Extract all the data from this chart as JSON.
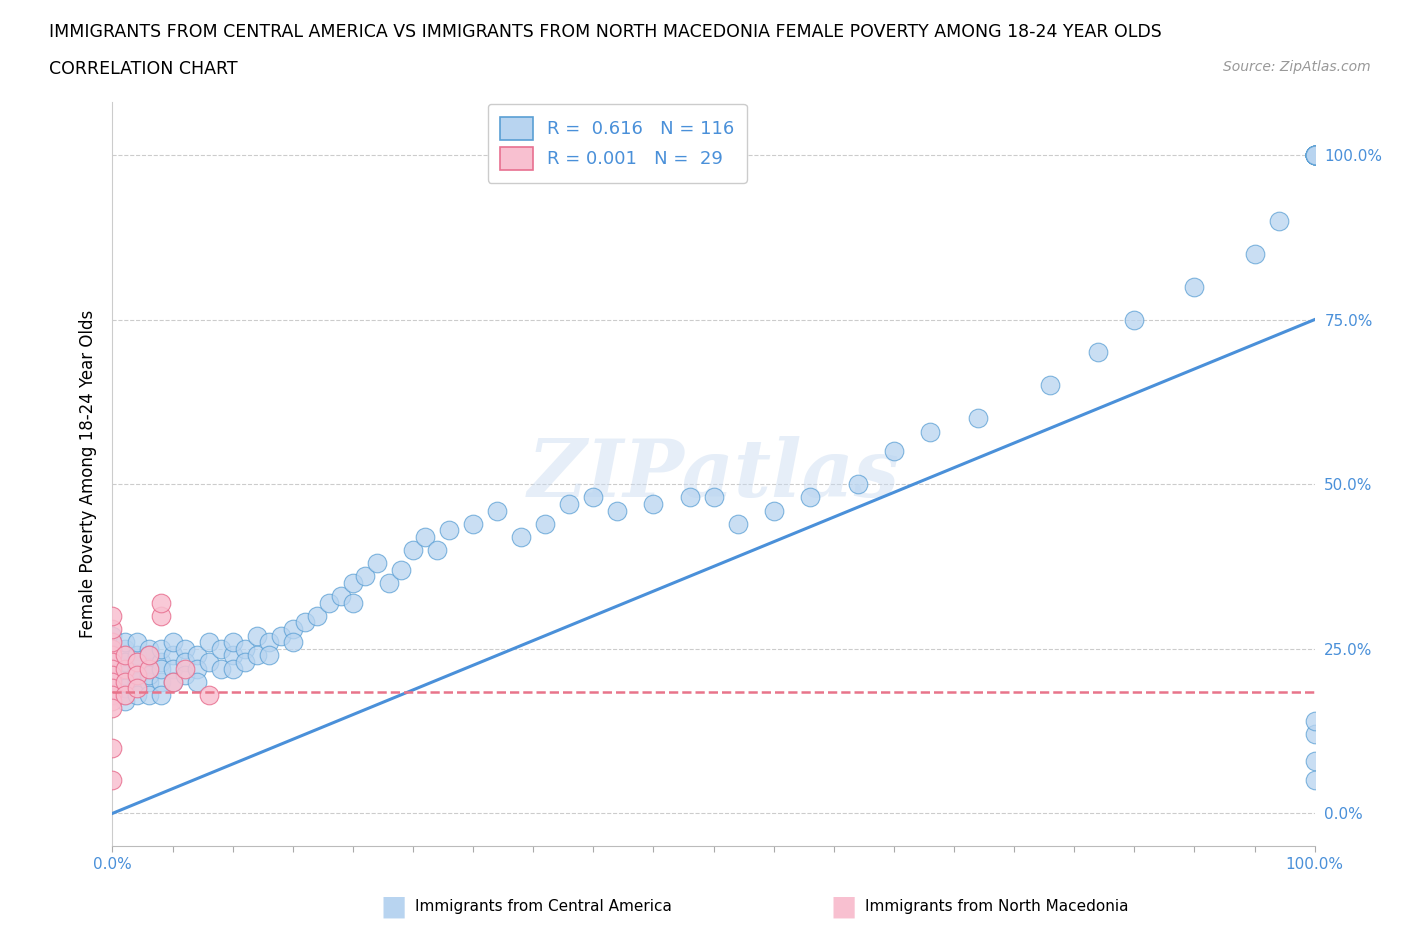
{
  "title_line1": "IMMIGRANTS FROM CENTRAL AMERICA VS IMMIGRANTS FROM NORTH MACEDONIA FEMALE POVERTY AMONG 18-24 YEAR OLDS",
  "title_line2": "CORRELATION CHART",
  "source_text": "Source: ZipAtlas.com",
  "ylabel": "Female Poverty Among 18-24 Year Olds",
  "xlim": [
    0,
    1
  ],
  "ylim": [
    -0.05,
    1.08
  ],
  "yticks": [
    0.0,
    0.25,
    0.5,
    0.75,
    1.0
  ],
  "ytick_labels": [
    "0.0%",
    "25.0%",
    "50.0%",
    "75.0%",
    "100.0%"
  ],
  "blue_R": 0.616,
  "blue_N": 116,
  "pink_R": 0.001,
  "pink_N": 29,
  "blue_color": "#b8d4f0",
  "blue_edge_color": "#5a9fd4",
  "blue_line_color": "#4a90d9",
  "pink_color": "#f8c0d0",
  "pink_edge_color": "#e87090",
  "pink_line_color": "#e8748a",
  "legend_label_blue": "Immigrants from Central America",
  "legend_label_pink": "Immigrants from North Macedonia",
  "watermark": "ZIPatlas",
  "title_fontsize": 12.5,
  "subtitle_fontsize": 12.5,
  "source_fontsize": 10,
  "ylabel_fontsize": 12,
  "blue_trend_slope": 0.75,
  "blue_trend_intercept": 0.0,
  "pink_trend_y": 0.185,
  "blue_x": [
    0.0,
    0.0,
    0.0,
    0.0,
    0.0,
    0.0,
    0.0,
    0.0,
    0.0,
    0.0,
    0.01,
    0.01,
    0.01,
    0.01,
    0.01,
    0.01,
    0.01,
    0.01,
    0.01,
    0.01,
    0.02,
    0.02,
    0.02,
    0.02,
    0.02,
    0.02,
    0.02,
    0.03,
    0.03,
    0.03,
    0.03,
    0.03,
    0.03,
    0.04,
    0.04,
    0.04,
    0.04,
    0.04,
    0.05,
    0.05,
    0.05,
    0.05,
    0.06,
    0.06,
    0.06,
    0.07,
    0.07,
    0.07,
    0.08,
    0.08,
    0.09,
    0.09,
    0.1,
    0.1,
    0.1,
    0.11,
    0.11,
    0.12,
    0.12,
    0.13,
    0.13,
    0.14,
    0.15,
    0.15,
    0.16,
    0.17,
    0.18,
    0.19,
    0.2,
    0.2,
    0.21,
    0.22,
    0.23,
    0.24,
    0.25,
    0.26,
    0.27,
    0.28,
    0.3,
    0.32,
    0.34,
    0.36,
    0.38,
    0.4,
    0.42,
    0.45,
    0.48,
    0.5,
    0.52,
    0.55,
    0.58,
    0.62,
    0.65,
    0.68,
    0.72,
    0.78,
    0.82,
    0.85,
    0.9,
    0.95,
    0.97,
    1.0,
    1.0,
    1.0,
    1.0,
    1.0,
    1.0,
    1.0,
    1.0,
    1.0,
    1.0,
    1.0,
    1.0,
    1.0,
    1.0,
    1.0
  ],
  "blue_y": [
    0.22,
    0.24,
    0.26,
    0.2,
    0.18,
    0.25,
    0.23,
    0.27,
    0.21,
    0.19,
    0.22,
    0.25,
    0.2,
    0.18,
    0.24,
    0.26,
    0.21,
    0.23,
    0.19,
    0.17,
    0.22,
    0.24,
    0.2,
    0.18,
    0.26,
    0.21,
    0.23,
    0.22,
    0.25,
    0.2,
    0.18,
    0.24,
    0.21,
    0.23,
    0.25,
    0.2,
    0.22,
    0.18,
    0.24,
    0.22,
    0.2,
    0.26,
    0.25,
    0.23,
    0.21,
    0.24,
    0.22,
    0.2,
    0.26,
    0.23,
    0.25,
    0.22,
    0.24,
    0.26,
    0.22,
    0.25,
    0.23,
    0.27,
    0.24,
    0.26,
    0.24,
    0.27,
    0.28,
    0.26,
    0.29,
    0.3,
    0.32,
    0.33,
    0.35,
    0.32,
    0.36,
    0.38,
    0.35,
    0.37,
    0.4,
    0.42,
    0.4,
    0.43,
    0.44,
    0.46,
    0.42,
    0.44,
    0.47,
    0.48,
    0.46,
    0.47,
    0.48,
    0.48,
    0.44,
    0.46,
    0.48,
    0.5,
    0.55,
    0.58,
    0.6,
    0.65,
    0.7,
    0.75,
    0.8,
    0.85,
    0.9,
    1.0,
    1.0,
    1.0,
    1.0,
    1.0,
    1.0,
    1.0,
    1.0,
    1.0,
    1.0,
    1.0,
    0.12,
    0.08,
    0.05,
    0.14
  ],
  "pink_x": [
    0.0,
    0.0,
    0.0,
    0.0,
    0.0,
    0.0,
    0.0,
    0.0,
    0.0,
    0.0,
    0.0,
    0.0,
    0.0,
    0.0,
    0.0,
    0.01,
    0.01,
    0.01,
    0.01,
    0.02,
    0.02,
    0.02,
    0.03,
    0.03,
    0.04,
    0.04,
    0.05,
    0.06,
    0.08
  ],
  "pink_y": [
    0.25,
    0.24,
    0.23,
    0.22,
    0.21,
    0.2,
    0.19,
    0.18,
    0.17,
    0.16,
    0.26,
    0.28,
    0.3,
    0.1,
    0.05,
    0.22,
    0.24,
    0.2,
    0.18,
    0.23,
    0.21,
    0.19,
    0.22,
    0.24,
    0.3,
    0.32,
    0.2,
    0.22,
    0.18
  ]
}
